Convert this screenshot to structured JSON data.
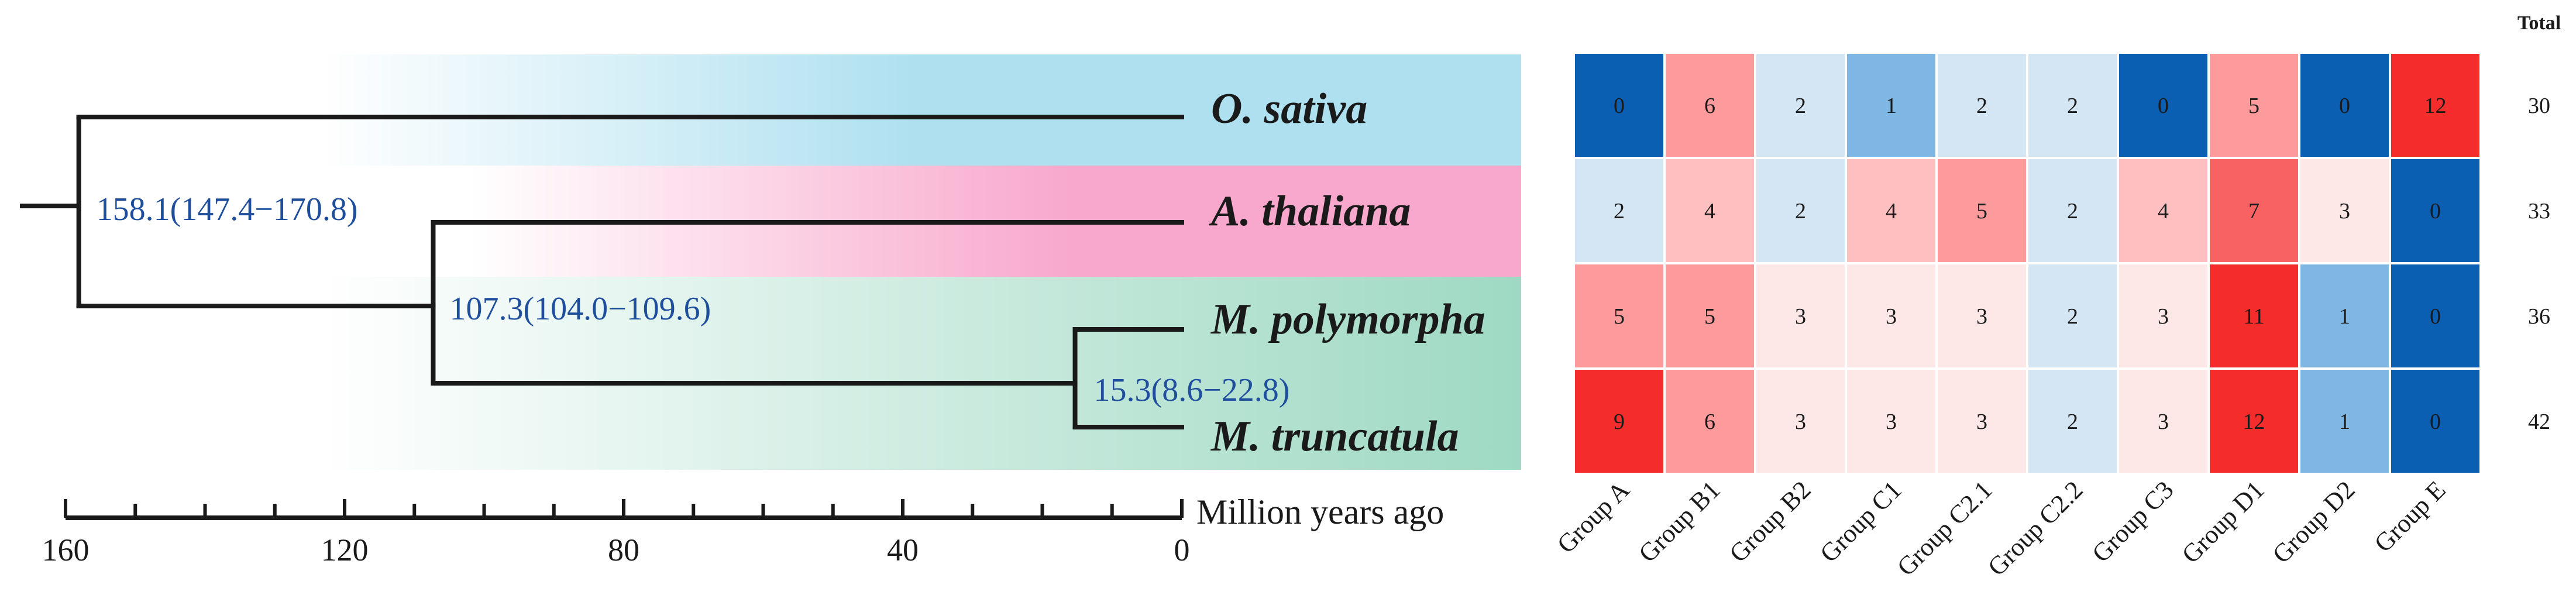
{
  "chart_data": [
    {
      "type": "phylogeny",
      "axis": {
        "title": "Million years ago",
        "ticks": [
          160,
          120,
          80,
          40,
          0
        ],
        "minor_step": 10,
        "range": [
          160,
          0
        ]
      },
      "species": [
        {
          "name": "O. sativa",
          "band_color": "#aee0f0"
        },
        {
          "name": "A. thaliana",
          "band_color": "#f8a8cc"
        },
        {
          "name": "M. polymorpha",
          "band_color": "#9ed9c3"
        },
        {
          "name": "M. truncatula",
          "band_color": "#9ed9c3"
        }
      ],
      "nodes": [
        {
          "age": 158.1,
          "label": "158.1(147.4−170.8)"
        },
        {
          "age": 107.3,
          "label": "107.3(104.0−109.6)"
        },
        {
          "age": 15.3,
          "label": "15.3(8.6−22.8)"
        }
      ]
    },
    {
      "type": "heatmap",
      "columns": [
        "Group A",
        "Group B1",
        "Group B2",
        "Group C1",
        "Group C2.1",
        "Group C2.2",
        "Group C3",
        "Group D1",
        "Group D2",
        "Group E"
      ],
      "rows": [
        "O. sativa",
        "A. thaliana",
        "M. polymorpha",
        "M. truncatula"
      ],
      "values": [
        [
          0,
          6,
          2,
          1,
          2,
          2,
          0,
          5,
          0,
          12
        ],
        [
          2,
          4,
          2,
          4,
          5,
          2,
          4,
          7,
          3,
          0
        ],
        [
          5,
          5,
          3,
          3,
          3,
          2,
          3,
          11,
          1,
          0
        ],
        [
          9,
          6,
          3,
          3,
          3,
          2,
          3,
          12,
          1,
          0
        ]
      ],
      "cell_colors": [
        [
          "#0b5fb3",
          "#fc9a9c",
          "#d4e6f4",
          "#7eb7e4",
          "#d4e6f4",
          "#d4e6f4",
          "#0b5fb3",
          "#fc9a9c",
          "#0b5fb3",
          "#f52c2c"
        ],
        [
          "#d4e6f4",
          "#fdbfbf",
          "#d4e6f4",
          "#fdbfbf",
          "#fc9a9c",
          "#d4e6f4",
          "#fdbfbf",
          "#f96262",
          "#fde7e7",
          "#0b5fb3"
        ],
        [
          "#fc9a9c",
          "#fc9a9c",
          "#fde7e7",
          "#fde7e7",
          "#fde7e7",
          "#d4e6f4",
          "#fde7e7",
          "#f52c2c",
          "#7eb7e4",
          "#0b5fb3"
        ],
        [
          "#f52c2c",
          "#fc9a9c",
          "#fde7e7",
          "#fde7e7",
          "#fde7e7",
          "#d4e6f4",
          "#fde7e7",
          "#f52c2c",
          "#7eb7e4",
          "#0b5fb3"
        ]
      ],
      "totals_header": "Total",
      "totals": [
        30,
        33,
        36,
        42
      ]
    }
  ]
}
